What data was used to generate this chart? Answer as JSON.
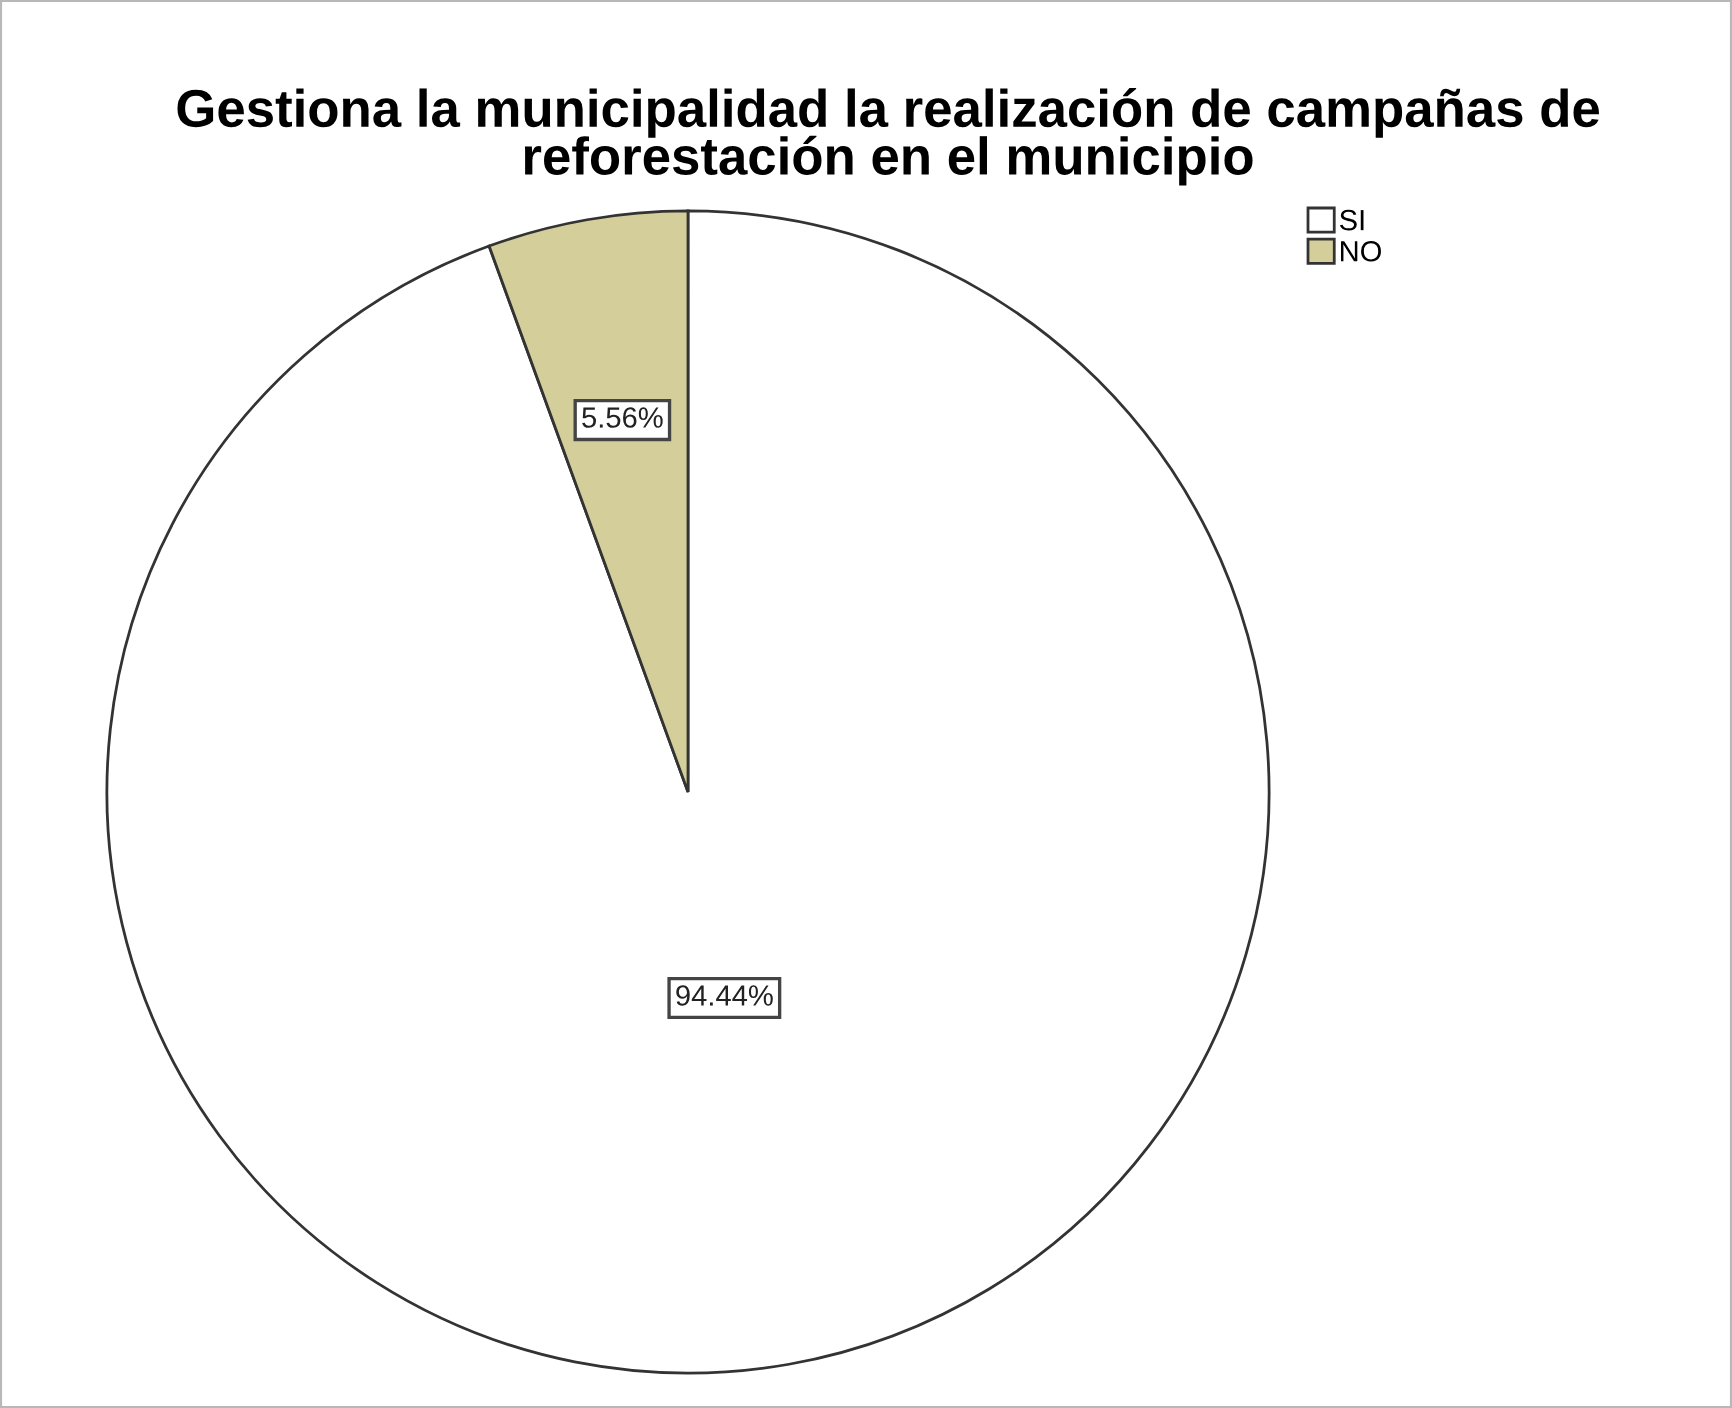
{
  "chart_data": {
    "type": "pie",
    "title": "Gestiona la municipalidad la realización de campañas de\nreforestación en el municipio",
    "categories": [
      "SI",
      "NO"
    ],
    "values": [
      94.44,
      5.56
    ],
    "colors": [
      "#ffffff",
      "#d4cf9a"
    ],
    "value_labels": [
      "94.44%",
      "5.56%"
    ],
    "legend": "top right"
  }
}
